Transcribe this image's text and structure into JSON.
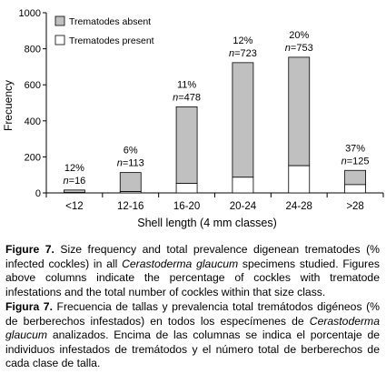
{
  "chart_data": {
    "type": "bar",
    "stacked": true,
    "categories": [
      "<12",
      "12-16",
      "16-20",
      "20-24",
      "24-28",
      ">28"
    ],
    "series": [
      {
        "name": "Trematodes absent",
        "color": "#c0c0c0",
        "values": [
          14,
          106,
          425,
          636,
          602,
          79
        ]
      },
      {
        "name": "Trematodes present",
        "color": "#ffffff",
        "values": [
          2,
          7,
          53,
          87,
          151,
          46
        ]
      }
    ],
    "totals": [
      16,
      113,
      478,
      723,
      753,
      125
    ],
    "annotations": [
      {
        "percent": "12%",
        "n": "=16"
      },
      {
        "percent": "6%",
        "n": "=113"
      },
      {
        "percent": "11%",
        "n": "=478"
      },
      {
        "percent": "12%",
        "n": "=723"
      },
      {
        "percent": "20%",
        "n": "=753"
      },
      {
        "percent": "37%",
        "n": "=125"
      }
    ],
    "n_symbol": "n",
    "xlabel": "Shell length (4 mm classes)",
    "ylabel": "Frecuency",
    "ylim": [
      0,
      1000
    ],
    "yticks": [
      0,
      200,
      400,
      600,
      800,
      1000
    ],
    "legend_position": "top-left",
    "grid": false
  },
  "caption_en": {
    "label": "Figure 7.",
    "p1": " Size frequency and total prevalence digenean trematodes (% infected cockles) in all ",
    "species": "Cerastoderma glaucum",
    "p2": " specimens studied. Figures above columns indicate the percentage of cockles with trematode infestations and the total number of cockles within that size class."
  },
  "caption_es": {
    "label": "Figura 7.",
    "p1": " Frecuencia de tallas y prevalencia total tremátodos digéneos (% de berberechos infestados) en todos los especímenes de ",
    "species": "Cerastoderma glaucum",
    "p2": " analizados. Encima de las columnas se indica el porcentaje de individuos infestados de tremátodos y el número total de berberechos de cada clase de talla."
  }
}
